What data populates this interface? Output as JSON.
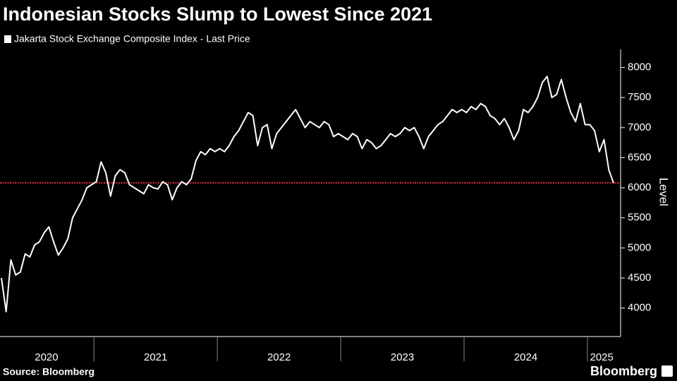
{
  "chart_data": {
    "type": "line",
    "title": "Indonesian Stocks Slump to Lowest Since 2021",
    "y_axis_label": "Level",
    "source": "Source: Bloomberg",
    "brand": "Bloomberg",
    "ylim": [
      3550,
      8300
    ],
    "yticks": [
      4000,
      4500,
      5000,
      5500,
      6000,
      6500,
      7000,
      7500,
      8000
    ],
    "reference_line": {
      "value": 6080,
      "color": "#e8304a"
    },
    "categories": [
      "2020",
      "2020",
      "2020",
      "2020",
      "2020",
      "2020",
      "2020",
      "2020",
      "2020",
      "2020",
      "2020",
      "2020",
      "2020",
      "2020",
      "2020",
      "2020",
      "2020",
      "2020",
      "2020",
      "2020",
      "2021",
      "2021",
      "2021",
      "2021",
      "2021",
      "2021",
      "2021",
      "2021",
      "2021",
      "2021",
      "2021",
      "2021",
      "2021",
      "2021",
      "2021",
      "2021",
      "2021",
      "2021",
      "2021",
      "2021",
      "2021",
      "2021",
      "2021",
      "2021",
      "2021",
      "2021",
      "2022",
      "2022",
      "2022",
      "2022",
      "2022",
      "2022",
      "2022",
      "2022",
      "2022",
      "2022",
      "2022",
      "2022",
      "2022",
      "2022",
      "2022",
      "2022",
      "2022",
      "2022",
      "2022",
      "2022",
      "2022",
      "2022",
      "2022",
      "2022",
      "2022",
      "2022",
      "2023",
      "2023",
      "2023",
      "2023",
      "2023",
      "2023",
      "2023",
      "2023",
      "2023",
      "2023",
      "2023",
      "2023",
      "2023",
      "2023",
      "2023",
      "2023",
      "2023",
      "2023",
      "2023",
      "2023",
      "2023",
      "2023",
      "2023",
      "2023",
      "2023",
      "2023",
      "2024",
      "2024",
      "2024",
      "2024",
      "2024",
      "2024",
      "2024",
      "2024",
      "2024",
      "2024",
      "2024",
      "2024",
      "2024",
      "2024",
      "2024",
      "2024",
      "2024",
      "2024",
      "2024",
      "2024",
      "2024",
      "2024",
      "2024",
      "2024",
      "2024",
      "2024",
      "2025",
      "2025",
      "2025",
      "2025",
      "2025",
      "2025"
    ],
    "series": [
      {
        "name": "Jakarta Stock Exchange Composite Index - Last Price",
        "color": "#ffffff",
        "values": [
          4500,
          3940,
          4800,
          4550,
          4600,
          4900,
          4850,
          5050,
          5100,
          5250,
          5350,
          5100,
          4880,
          5000,
          5150,
          5500,
          5650,
          5800,
          6000,
          6050,
          6100,
          6430,
          6250,
          5860,
          6200,
          6300,
          6250,
          6050,
          6000,
          5950,
          5900,
          6050,
          6000,
          5980,
          6100,
          6050,
          5800,
          6000,
          6100,
          6050,
          6150,
          6450,
          6600,
          6550,
          6650,
          6600,
          6650,
          6600,
          6700,
          6850,
          6950,
          7100,
          7250,
          7200,
          6700,
          7000,
          7050,
          6650,
          6900,
          7000,
          7100,
          7200,
          7300,
          7150,
          7000,
          7100,
          7050,
          7000,
          7100,
          7050,
          6850,
          6900,
          6850,
          6800,
          6900,
          6850,
          6650,
          6800,
          6750,
          6650,
          6700,
          6800,
          6900,
          6850,
          6900,
          7000,
          6950,
          7000,
          6850,
          6650,
          6850,
          6950,
          7050,
          7100,
          7200,
          7300,
          7250,
          7300,
          7250,
          7350,
          7300,
          7400,
          7350,
          7200,
          7150,
          7050,
          7150,
          7000,
          6800,
          6950,
          7300,
          7250,
          7350,
          7500,
          7750,
          7850,
          7500,
          7550,
          7800,
          7500,
          7250,
          7100,
          7400,
          7050,
          7050,
          6950,
          6600,
          6800,
          6300,
          6080
        ]
      }
    ]
  }
}
